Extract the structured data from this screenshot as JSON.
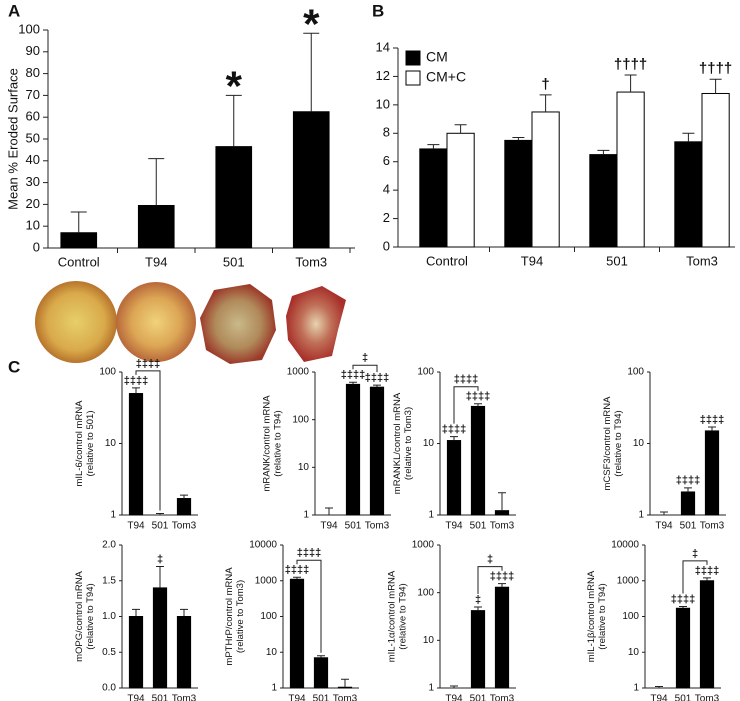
{
  "chart_data": [
    {
      "type": "bar",
      "panel": "A",
      "ylabel": "Mean % Eroded Surface",
      "categories": [
        "Control",
        "T94",
        "501",
        "Tom3"
      ],
      "series": [
        {
          "color": "#000000",
          "values": [
            7,
            19.5,
            46.5,
            62.5
          ],
          "errors": [
            9.5,
            21.5,
            23.5,
            36
          ],
          "annotations": [
            null,
            null,
            "*",
            "*"
          ]
        }
      ],
      "ylim": [
        0,
        100
      ],
      "yticks": [
        0,
        10,
        20,
        30,
        40,
        50,
        60,
        70,
        80,
        90,
        100
      ]
    },
    {
      "type": "bar",
      "panel": "B",
      "legend": "upper left",
      "categories": [
        "Control",
        "T94",
        "501",
        "Tom3"
      ],
      "series": [
        {
          "name": "CM",
          "color": "#000000",
          "values": [
            6.9,
            7.5,
            6.5,
            7.4
          ],
          "errors": [
            0.3,
            0.2,
            0.3,
            0.6
          ],
          "annotations": [
            null,
            null,
            null,
            null
          ]
        },
        {
          "name": "CM+C",
          "color": "#ffffff",
          "values": [
            8.0,
            9.5,
            10.9,
            10.8
          ],
          "errors": [
            0.6,
            1.2,
            1.2,
            1.0
          ],
          "annotations": [
            null,
            "†",
            "††††",
            "††††"
          ]
        }
      ],
      "ylim": [
        0,
        14
      ],
      "yticks": [
        0,
        2,
        4,
        6,
        8,
        10,
        12,
        14
      ]
    },
    {
      "type": "bar",
      "panel": "C",
      "ylabel": "mIL-6/control mRNA",
      "ylabel2": "(relative to 501)",
      "log_scale": true,
      "categories": [
        "T94",
        "501",
        "Tom3"
      ],
      "series": [
        {
          "color": "#000000",
          "values": [
            50,
            1.0,
            1.7
          ],
          "errors": [
            10,
            0.05,
            0.2
          ],
          "annotations": [
            "‡‡‡‡",
            null,
            null
          ]
        }
      ],
      "brackets": [
        {
          "from": "T94",
          "to": "501",
          "label": "‡‡‡‡"
        }
      ],
      "ylim": [
        1,
        100
      ],
      "yticks": [
        1,
        10,
        100
      ]
    },
    {
      "type": "bar",
      "ylabel": "mRANK/control mRNA",
      "ylabel2": "(relative to T94)",
      "log_scale": true,
      "categories": [
        "T94",
        "501",
        "Tom3"
      ],
      "series": [
        {
          "color": "#000000",
          "values": [
            1.0,
            550,
            480
          ],
          "errors": [
            0.4,
            60,
            50
          ],
          "annotations": [
            null,
            "‡‡‡‡",
            "‡‡‡‡"
          ]
        }
      ],
      "brackets": [
        {
          "from": "501",
          "to": "Tom3",
          "label": "‡"
        }
      ],
      "ylim": [
        1,
        1000
      ],
      "yticks": [
        1,
        10,
        100,
        1000
      ]
    },
    {
      "type": "bar",
      "ylabel": "mRANKL/control mRNA",
      "ylabel2": "(relative to Tom3)",
      "log_scale": true,
      "categories": [
        "T94",
        "501",
        "Tom3"
      ],
      "series": [
        {
          "color": "#000000",
          "values": [
            11,
            33,
            1.15
          ],
          "errors": [
            1.5,
            3,
            0.9
          ],
          "annotations": [
            "‡‡‡‡",
            "‡‡‡‡",
            null
          ]
        }
      ],
      "brackets": [
        {
          "from": "T94",
          "to": "501",
          "label": "‡‡‡‡"
        }
      ],
      "ylim": [
        1,
        100
      ],
      "yticks": [
        1,
        10,
        100
      ]
    },
    {
      "type": "bar",
      "ylabel": "mCSF3/control mRNA",
      "ylabel2": "(relative to T94)",
      "log_scale": true,
      "categories": [
        "T94",
        "501",
        "Tom3"
      ],
      "series": [
        {
          "color": "#000000",
          "values": [
            1.0,
            2.1,
            15
          ],
          "errors": [
            0.1,
            0.3,
            2
          ],
          "annotations": [
            null,
            "‡‡‡‡",
            "‡‡‡‡"
          ]
        }
      ],
      "ylim": [
        1,
        100
      ],
      "yticks": [
        1,
        10,
        100
      ]
    },
    {
      "type": "bar",
      "ylabel": "mOPG/control mRNA",
      "ylabel2": "(relative to T94)",
      "categories": [
        "T94",
        "501",
        "Tom3"
      ],
      "series": [
        {
          "color": "#000000",
          "values": [
            1.0,
            1.4,
            1.0
          ],
          "errors": [
            0.1,
            0.3,
            0.1
          ],
          "annotations": [
            null,
            "‡",
            null
          ]
        }
      ],
      "ylim": [
        0,
        2
      ],
      "yticks": [
        {
          "value": 0,
          "label": "0.0"
        },
        0.5,
        {
          "value": 1,
          "label": "1.0"
        },
        1.5,
        {
          "value": 2,
          "label": "2.0"
        }
      ]
    },
    {
      "type": "bar",
      "ylabel": "mPTHrP/control mRNA",
      "ylabel2": "(relative to Tom3)",
      "log_scale": true,
      "categories": [
        "T94",
        "501",
        "Tom3"
      ],
      "series": [
        {
          "color": "#000000",
          "values": [
            1100,
            7,
            1.05
          ],
          "errors": [
            150,
            1,
            0.7
          ],
          "annotations": [
            "‡‡‡‡",
            null,
            null
          ]
        }
      ],
      "brackets": [
        {
          "from": "T94",
          "to": "501",
          "label": "‡‡‡‡"
        }
      ],
      "ylim": [
        1,
        10000
      ],
      "yticks": [
        1,
        10,
        100,
        1000,
        10000
      ]
    },
    {
      "type": "bar",
      "ylabel": "mIL-1α/control mRNA",
      "ylabel2": "(relative to T94)",
      "log_scale": true,
      "categories": [
        "T94",
        "501",
        "Tom3"
      ],
      "series": [
        {
          "color": "#000000",
          "values": [
            1.0,
            42,
            130
          ],
          "errors": [
            0.1,
            8,
            25
          ],
          "annotations": [
            null,
            "‡",
            "‡‡‡‡"
          ]
        }
      ],
      "brackets": [
        {
          "from": "501",
          "to": "Tom3",
          "label": "‡"
        }
      ],
      "ylim": [
        1,
        1000
      ],
      "yticks": [
        1,
        10,
        100,
        1000
      ]
    },
    {
      "type": "bar",
      "ylabel": "mIL-1β/control mRNA",
      "ylabel2": "(relative to T94)",
      "log_scale": true,
      "categories": [
        "T94",
        "501",
        "Tom3"
      ],
      "series": [
        {
          "color": "#000000",
          "values": [
            1.0,
            170,
            1000
          ],
          "errors": [
            0.1,
            20,
            200
          ],
          "annotations": [
            null,
            "‡‡‡‡",
            "‡‡‡‡"
          ]
        }
      ],
      "brackets": [
        {
          "from": "501",
          "to": "Tom3",
          "label": "‡"
        }
      ],
      "ylim": [
        1,
        10000
      ],
      "yticks": [
        1,
        10,
        100,
        1000,
        10000
      ]
    }
  ]
}
